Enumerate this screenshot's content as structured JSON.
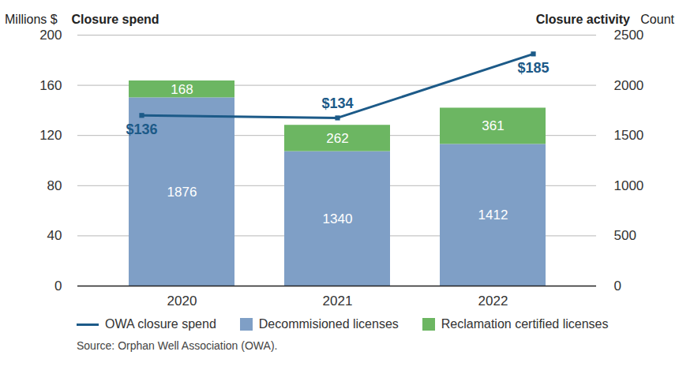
{
  "chart_data": {
    "type": "bar",
    "stacked": true,
    "data_labels": true,
    "grid": true,
    "legend": "bottom",
    "ylabel": "Millions $",
    "ytitle": "Closure spend",
    "y2label": "Count",
    "y2title": "Closure activity",
    "source": "Source: Orphan Well Association (OWA).",
    "categories": [
      "2020",
      "2021",
      "2022"
    ],
    "series": [
      {
        "name": "OWA closure spend",
        "type": "line",
        "color": "#1c5a88",
        "marker": "square",
        "values": [
          136,
          134,
          185
        ],
        "value_labels": [
          "$136",
          "$134",
          "$185"
        ]
      },
      {
        "name": "Decommisioned licenses",
        "type": "bar",
        "color": "#7f9fc6",
        "axis": "y2",
        "values": [
          1876,
          1340,
          1412
        ]
      },
      {
        "name": "Reclamation certified licenses",
        "type": "bar",
        "color": "#6cb662",
        "axis": "y2",
        "values": [
          168,
          262,
          361
        ]
      }
    ],
    "ylim": [
      0,
      200
    ],
    "yticks": [
      0,
      40,
      80,
      120,
      160,
      200
    ],
    "y2lim": [
      0,
      2500
    ],
    "y2ticks": [
      0,
      500,
      1000,
      1500,
      2000,
      2500
    ]
  }
}
